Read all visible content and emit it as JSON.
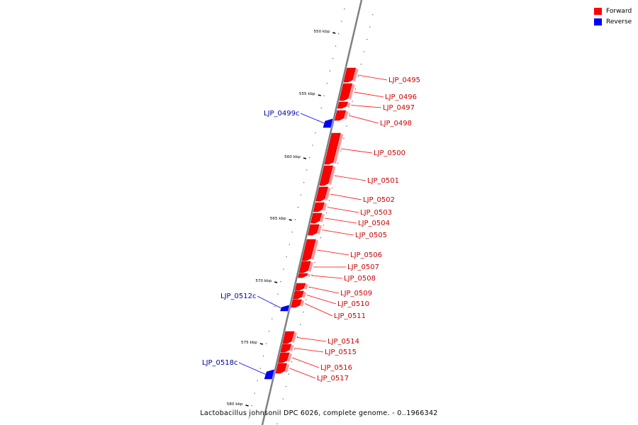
{
  "colors": {
    "forward": "#ff0000",
    "reverse": "#0000ff",
    "backbone": "#808080"
  },
  "legend": [
    {
      "label": "Forward",
      "color": "#ff0000"
    },
    {
      "label": "Reverse",
      "color": "#0000ff"
    }
  ],
  "caption": "Lactobacillus johnsonii DPC 6026, complete genome. - 0..1966342",
  "scale_ticks": [
    "550 kbp",
    "555 kbp",
    "560 kbp",
    "565 kbp",
    "570 kbp",
    "575 kbp",
    "580 kbp"
  ],
  "genes": [
    {
      "name": "LJP_0495",
      "strand": "forward"
    },
    {
      "name": "LJP_0496",
      "strand": "forward"
    },
    {
      "name": "LJP_0497",
      "strand": "forward"
    },
    {
      "name": "LJP_0498",
      "strand": "forward"
    },
    {
      "name": "LJP_0499c",
      "strand": "reverse"
    },
    {
      "name": "LJP_0500",
      "strand": "forward"
    },
    {
      "name": "LJP_0501",
      "strand": "forward"
    },
    {
      "name": "LJP_0502",
      "strand": "forward"
    },
    {
      "name": "LJP_0503",
      "strand": "forward"
    },
    {
      "name": "LJP_0504",
      "strand": "forward"
    },
    {
      "name": "LJP_0505",
      "strand": "forward"
    },
    {
      "name": "LJP_0506",
      "strand": "forward"
    },
    {
      "name": "LJP_0507",
      "strand": "forward"
    },
    {
      "name": "LJP_0508",
      "strand": "forward"
    },
    {
      "name": "LJP_0509",
      "strand": "forward"
    },
    {
      "name": "LJP_0510",
      "strand": "forward"
    },
    {
      "name": "LJP_0511",
      "strand": "forward"
    },
    {
      "name": "LJP_0512c",
      "strand": "reverse"
    },
    {
      "name": "LJP_0514",
      "strand": "forward"
    },
    {
      "name": "LJP_0515",
      "strand": "forward"
    },
    {
      "name": "LJP_0516",
      "strand": "forward"
    },
    {
      "name": "LJP_0517",
      "strand": "forward"
    },
    {
      "name": "LJP_0518c",
      "strand": "reverse"
    }
  ]
}
